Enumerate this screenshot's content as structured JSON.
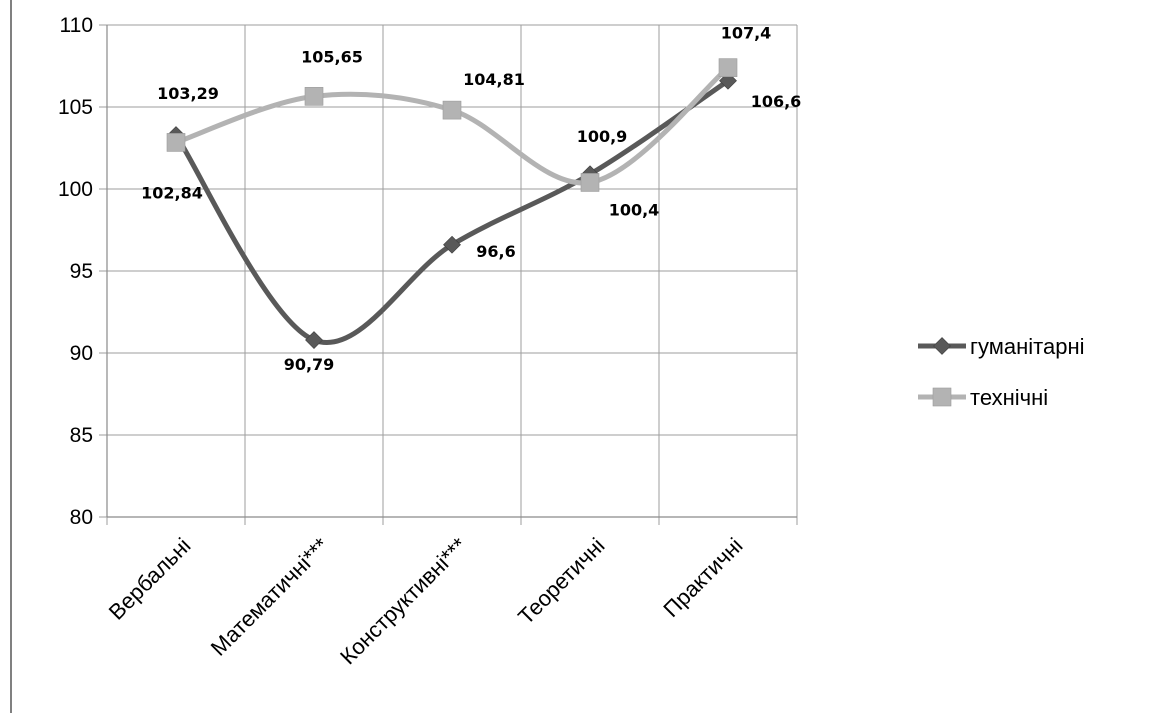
{
  "chart_data": {
    "type": "line",
    "categories": [
      "Вербальні",
      "Математичні***",
      "Конструктивні***",
      "Теоретичні",
      "Практичні"
    ],
    "ylim": [
      80,
      110
    ],
    "yticks": [
      80,
      85,
      90,
      95,
      100,
      105,
      110
    ],
    "grid": true,
    "smooth": true,
    "legend": "right",
    "series": [
      {
        "name": "гуманітарні",
        "values": [
          103.29,
          90.79,
          96.6,
          100.9,
          106.6
        ],
        "labels": [
          "103,29",
          "90,79",
          "96,6",
          "100,9",
          "106,6"
        ],
        "color": "#595959",
        "marker": "diamond"
      },
      {
        "name": "технічні",
        "values": [
          102.84,
          105.65,
          104.81,
          100.4,
          107.4
        ],
        "labels": [
          "102,84",
          "105,65",
          "104,81",
          "100,4",
          "107,4"
        ],
        "color": "#b3b3b3",
        "marker": "square"
      }
    ]
  }
}
